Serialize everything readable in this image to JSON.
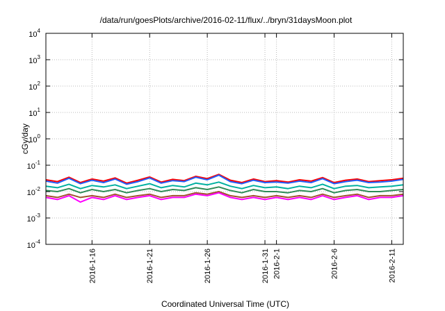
{
  "chart_data": {
    "type": "line",
    "title": "/data/run/goesPlots/archive/2016-02-11/flux/../bryn/31daysMoon.plot",
    "xlabel": "Coordinated Universal Time (UTC)",
    "ylabel": "cGy/day",
    "y_scale": "log",
    "ylim": [
      0.0001,
      10000
    ],
    "xlim": [
      "2016-01-12",
      "2016-02-12"
    ],
    "grid": true,
    "legend": "none",
    "y_ticks": [
      {
        "base": "10",
        "exp": "-4"
      },
      {
        "base": "10",
        "exp": "-3"
      },
      {
        "base": "10",
        "exp": "-2"
      },
      {
        "base": "10",
        "exp": "-1"
      },
      {
        "base": "10",
        "exp": "0"
      },
      {
        "base": "10",
        "exp": "1"
      },
      {
        "base": "10",
        "exp": "2"
      },
      {
        "base": "10",
        "exp": "3"
      },
      {
        "base": "10",
        "exp": "4"
      }
    ],
    "x_ticks": [
      {
        "date": "2016-01-16",
        "label": "2016-1-16"
      },
      {
        "date": "2016-01-21",
        "label": "2016-1-21"
      },
      {
        "date": "2016-01-26",
        "label": "2016-1-26"
      },
      {
        "date": "2016-01-31",
        "label": "2016-1-31"
      },
      {
        "date": "2016-02-01",
        "label": "2016-2-1"
      },
      {
        "date": "2016-02-06",
        "label": "2016-2-6"
      },
      {
        "date": "2016-02-11",
        "label": "2016-2-11"
      }
    ],
    "x_dates": [
      "2016-01-12",
      "2016-01-13",
      "2016-01-14",
      "2016-01-15",
      "2016-01-16",
      "2016-01-17",
      "2016-01-18",
      "2016-01-19",
      "2016-01-20",
      "2016-01-21",
      "2016-01-22",
      "2016-01-23",
      "2016-01-24",
      "2016-01-25",
      "2016-01-26",
      "2016-01-27",
      "2016-01-28",
      "2016-01-29",
      "2016-01-30",
      "2016-01-31",
      "2016-02-01",
      "2016-02-02",
      "2016-02-03",
      "2016-02-04",
      "2016-02-05",
      "2016-02-06",
      "2016-02-07",
      "2016-02-08",
      "2016-02-09",
      "2016-02-10",
      "2016-02-11",
      "2016-02-12"
    ],
    "series": [
      {
        "color": "#ff0000",
        "values": [
          0.028,
          0.024,
          0.035,
          0.022,
          0.03,
          0.025,
          0.033,
          0.021,
          0.027,
          0.036,
          0.023,
          0.029,
          0.026,
          0.038,
          0.031,
          0.045,
          0.027,
          0.022,
          0.03,
          0.024,
          0.026,
          0.023,
          0.028,
          0.025,
          0.034,
          0.022,
          0.027,
          0.03,
          0.024,
          0.026,
          0.028,
          0.032
        ]
      },
      {
        "color": "#1f5fff",
        "values": [
          0.025,
          0.021,
          0.032,
          0.02,
          0.027,
          0.022,
          0.03,
          0.019,
          0.024,
          0.033,
          0.021,
          0.026,
          0.024,
          0.035,
          0.028,
          0.042,
          0.024,
          0.02,
          0.027,
          0.022,
          0.023,
          0.021,
          0.025,
          0.022,
          0.031,
          0.02,
          0.024,
          0.027,
          0.022,
          0.023,
          0.025,
          0.029
        ]
      },
      {
        "color": "#00b0a0",
        "values": [
          0.016,
          0.014,
          0.019,
          0.013,
          0.017,
          0.015,
          0.018,
          0.013,
          0.016,
          0.02,
          0.014,
          0.017,
          0.015,
          0.021,
          0.018,
          0.023,
          0.016,
          0.013,
          0.017,
          0.014,
          0.015,
          0.013,
          0.016,
          0.014,
          0.019,
          0.013,
          0.016,
          0.017,
          0.014,
          0.015,
          0.016,
          0.018
        ]
      },
      {
        "color": "#2e8b57",
        "values": [
          0.011,
          0.01,
          0.013,
          0.009,
          0.012,
          0.01,
          0.012,
          0.009,
          0.011,
          0.013,
          0.01,
          0.012,
          0.011,
          0.014,
          0.012,
          0.015,
          0.011,
          0.009,
          0.012,
          0.01,
          0.01,
          0.009,
          0.011,
          0.01,
          0.013,
          0.009,
          0.011,
          0.012,
          0.01,
          0.01,
          0.011,
          0.012
        ]
      },
      {
        "color": "#a0522d",
        "values": [
          0.007,
          0.006,
          0.008,
          0.006,
          0.007,
          0.006,
          0.008,
          0.006,
          0.007,
          0.008,
          0.006,
          0.007,
          0.007,
          0.009,
          0.008,
          0.01,
          0.007,
          0.006,
          0.007,
          0.006,
          0.007,
          0.006,
          0.007,
          0.006,
          0.008,
          0.006,
          0.007,
          0.008,
          0.006,
          0.007,
          0.007,
          0.008
        ]
      },
      {
        "color": "#ff00ff",
        "values": [
          0.006,
          0.005,
          0.007,
          0.004,
          0.006,
          0.005,
          0.007,
          0.005,
          0.006,
          0.007,
          0.005,
          0.006,
          0.006,
          0.008,
          0.007,
          0.009,
          0.006,
          0.005,
          0.006,
          0.005,
          0.006,
          0.005,
          0.006,
          0.005,
          0.007,
          0.005,
          0.006,
          0.007,
          0.005,
          0.006,
          0.006,
          0.007
        ]
      }
    ]
  }
}
